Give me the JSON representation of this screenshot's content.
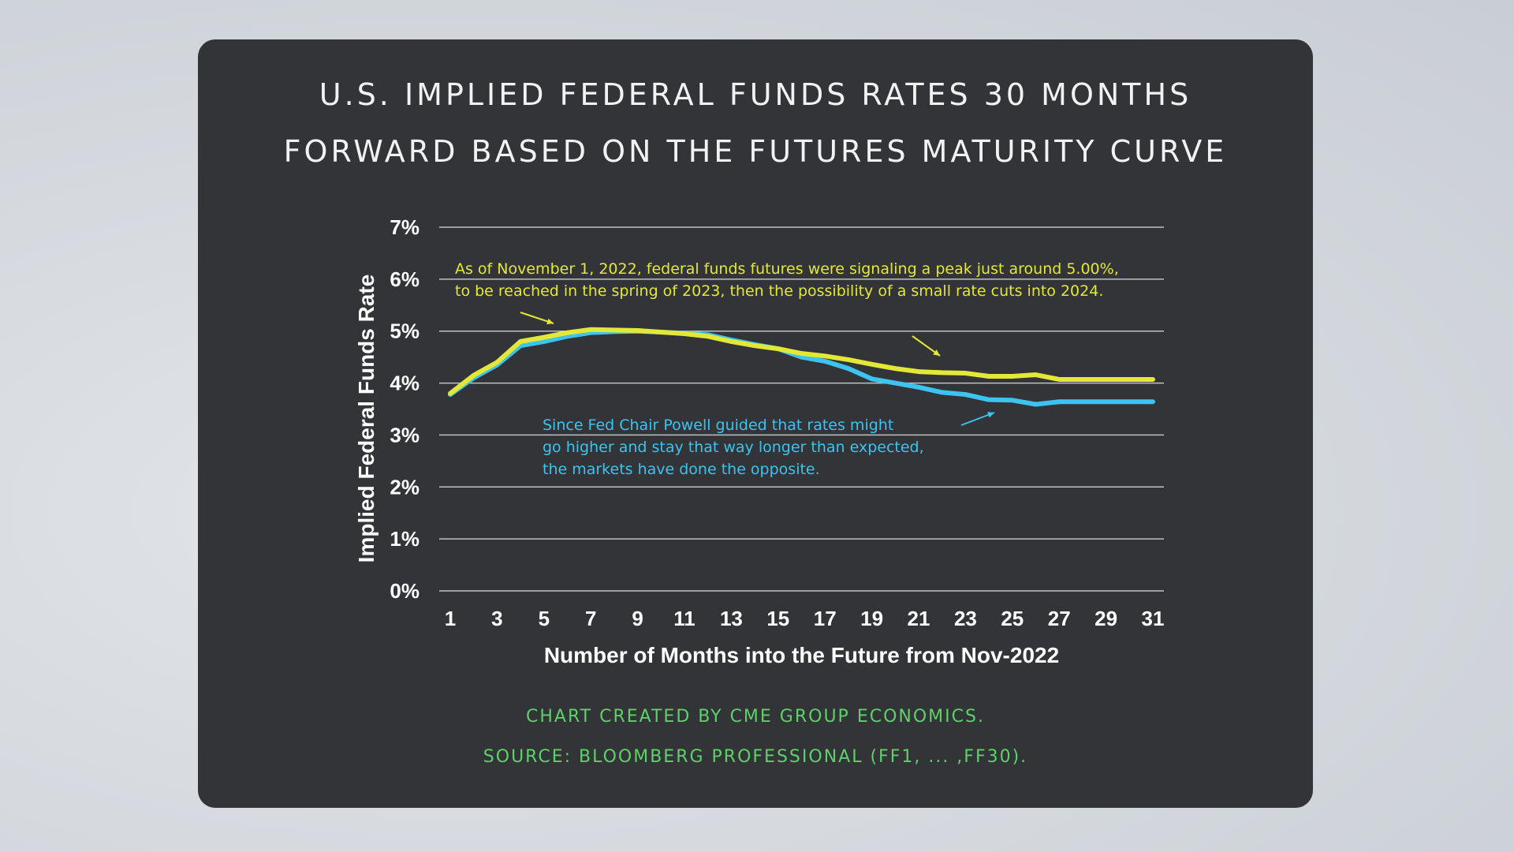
{
  "title_lines": [
    "U.S. IMPLIED FEDERAL FUNDS RATES 30 MONTHS",
    "FORWARD BASED ON THE FUTURES MATURITY CURVE"
  ],
  "footer": [
    "CHART CREATED BY CME GROUP ECONOMICS.",
    "SOURCE: BLOOMBERG PROFESSIONAL (FF1, ... ,FF30)."
  ],
  "colors": {
    "card": "#323437",
    "yellow": "#e3e836",
    "blue": "#3cc3ef",
    "footer": "#5fd16a"
  },
  "chart_data": {
    "type": "line",
    "xlabel": "Number of Months into the Future from Nov-2022",
    "ylabel": "Implied Federal Funds Rate",
    "xlim": [
      1,
      31
    ],
    "ylim": [
      0,
      7
    ],
    "grid": "horizontal",
    "xticks": [
      "1",
      "3",
      "5",
      "7",
      "9",
      "11",
      "13",
      "15",
      "17",
      "19",
      "21",
      "23",
      "25",
      "27",
      "29",
      "31"
    ],
    "yticks": [
      "0%",
      "1%",
      "2%",
      "3%",
      "4%",
      "5%",
      "6%",
      "7%"
    ],
    "x": [
      1,
      2,
      3,
      4,
      5,
      6,
      7,
      8,
      9,
      10,
      11,
      12,
      13,
      14,
      15,
      16,
      17,
      18,
      19,
      20,
      21,
      22,
      23,
      24,
      25,
      26,
      27,
      28,
      29,
      30,
      31
    ],
    "series": [
      {
        "color": "#3cc3ef",
        "values": [
          3.78,
          4.1,
          4.35,
          4.72,
          4.8,
          4.9,
          4.97,
          4.99,
          5.0,
          4.98,
          4.96,
          4.93,
          4.83,
          4.74,
          4.66,
          4.5,
          4.42,
          4.28,
          4.08,
          4.0,
          3.92,
          3.82,
          3.78,
          3.68,
          3.67,
          3.59,
          3.64,
          3.64,
          3.64,
          3.64,
          3.64
        ]
      },
      {
        "color": "#e3e836",
        "values": [
          3.8,
          4.15,
          4.4,
          4.8,
          4.88,
          4.97,
          5.03,
          5.02,
          5.01,
          4.98,
          4.95,
          4.9,
          4.8,
          4.72,
          4.66,
          4.57,
          4.52,
          4.45,
          4.36,
          4.28,
          4.22,
          4.2,
          4.19,
          4.13,
          4.13,
          4.16,
          4.07,
          4.07,
          4.07,
          4.07,
          4.07
        ]
      }
    ],
    "annotations": [
      {
        "color": "#e3e836",
        "lines": [
          "As of November 1, 2022, federal funds futures were signaling a peak just around 5.00%,",
          "to be reached in the spring of 2023, then the possibility of a small rate cuts into 2024."
        ]
      },
      {
        "color": "#3cc3ef",
        "lines": [
          "Since Fed Chair Powell guided that rates might",
          "go higher and stay that way longer than expected,",
          "the markets have done the opposite."
        ]
      }
    ]
  }
}
